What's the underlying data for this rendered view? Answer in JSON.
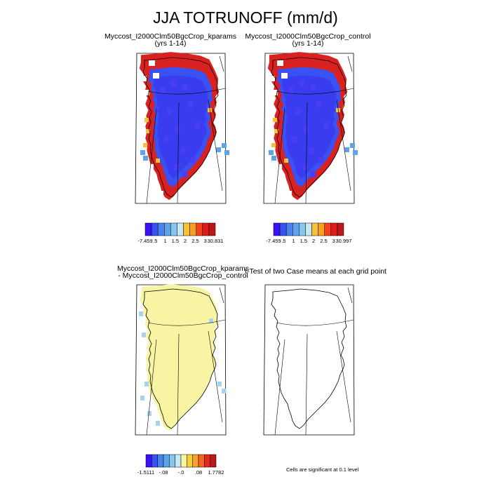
{
  "figure_title": "JJA TOTRUNOFF (mm/d)",
  "panels": [
    {
      "title": "Myccost_I2000Clm50BgcCrop_kparams",
      "subtitle": "(yrs 1-14)",
      "colorbar_labels": [
        "-7.459",
        ".5",
        "1",
        "1.5",
        "2",
        "2.5",
        "3",
        "30.831"
      ]
    },
    {
      "title": "Myccost_I2000Clm50BgcCrop_control",
      "subtitle": "(yrs 1-14)",
      "colorbar_labels": [
        "-7.459",
        ".5",
        "1",
        "1.5",
        "2",
        "2.5",
        "3",
        "30.997"
      ]
    },
    {
      "title": "Myccost_I2000Clm50BgcCrop_kparams",
      "subtitle": "- Myccost_I2000Clm50BgcCrop_control",
      "colorbar_labels": [
        "-1.5111",
        "-.08",
        "-.0",
        ".08",
        "1.7782"
      ]
    },
    {
      "title": "t-Test of two Case means at each grid point",
      "subtitle": "",
      "note": "Cells are significant at 0.1 level"
    }
  ],
  "colors": {
    "abs_scale": [
      "#3a10f5",
      "#3a52f2",
      "#4a82ee",
      "#5fa3ea",
      "#87c6ee",
      "#c8e8f4",
      "#f6c23a",
      "#fb9d1f",
      "#f4431c",
      "#dd1c1c",
      "#b81818"
    ],
    "diff_scale": [
      "#3a10f5",
      "#3a52f2",
      "#4a82ee",
      "#5fa3ea",
      "#87c6ee",
      "#c8e8f4",
      "#f7f49e",
      "#f6d03c",
      "#f9a22a",
      "#f46523",
      "#e22a1c",
      "#b81818"
    ],
    "interior": "#3a3cf0",
    "margin": "#d92220",
    "diff_fill": "#f8f4a4",
    "diff_edge": "#a8d2ef"
  },
  "chart_data": [
    {
      "type": "heatmap",
      "title": "Myccost_I2000Clm50BgcCrop_kparams (yrs 1-14)",
      "variable": "JJA TOTRUNOFF",
      "units": "mm/d",
      "range": [
        -7.459,
        30.831
      ],
      "levels": [
        0.5,
        1,
        1.5,
        2,
        2.5,
        3
      ]
    },
    {
      "type": "heatmap",
      "title": "Myccost_I2000Clm50BgcCrop_control (yrs 1-14)",
      "variable": "JJA TOTRUNOFF",
      "units": "mm/d",
      "range": [
        -7.459,
        30.997
      ],
      "levels": [
        0.5,
        1,
        1.5,
        2,
        2.5,
        3
      ]
    },
    {
      "type": "heatmap",
      "title": "Myccost_I2000Clm50BgcCrop_kparams - Myccost_I2000Clm50BgcCrop_control",
      "units": "mm/d",
      "range": [
        -1.5111,
        1.7782
      ],
      "levels": [
        -0.08,
        0.0,
        0.08
      ]
    },
    {
      "type": "heatmap",
      "title": "t-Test of two Case means at each grid point",
      "significance_level": 0.1
    }
  ]
}
